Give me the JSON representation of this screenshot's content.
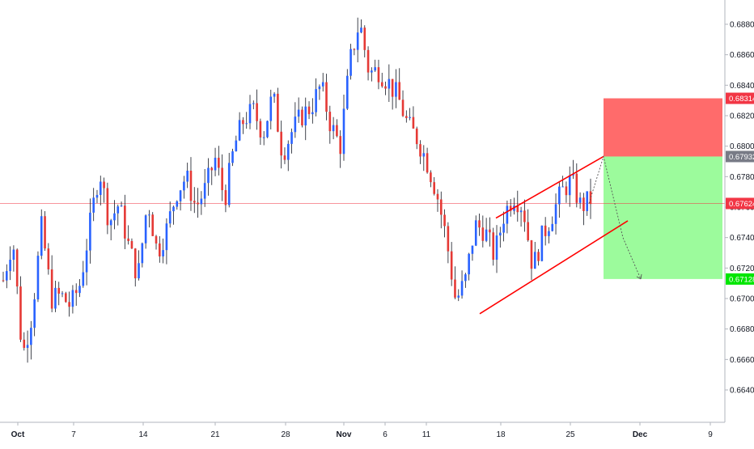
{
  "chart_data": {
    "type": "candlestick",
    "symbol_colors": {
      "up": "#2962ff",
      "down": "#e53935",
      "wick": "#131722"
    },
    "x_axis": {
      "ticks": [
        "Oct",
        "7",
        "14",
        "21",
        "28",
        "Nov",
        "6",
        "11",
        "18",
        "25",
        "Dec",
        "9"
      ],
      "tick_bold": [
        true,
        false,
        false,
        false,
        false,
        true,
        false,
        false,
        false,
        false,
        true,
        false
      ]
    },
    "y_axis": {
      "range": [
        0.6624,
        0.69
      ],
      "ticks": [
        "0.66400",
        "0.66600",
        "0.66800",
        "0.67000",
        "0.67200",
        "0.67400",
        "0.67600",
        "0.67800",
        "0.68000",
        "0.68200",
        "0.68400",
        "0.68600",
        "0.68800"
      ]
    },
    "price_tags": [
      {
        "label": "0.68314",
        "value": 0.68314,
        "color": "#f23645"
      },
      {
        "label": "0.67932",
        "value": 0.67932,
        "color": "#787b86"
      },
      {
        "label": "0.67624",
        "value": 0.67624,
        "color": "#f23645"
      },
      {
        "label": "0.67128",
        "value": 0.67128,
        "color": "#00e600"
      }
    ],
    "horizontal_line": {
      "value": 0.67624,
      "color": "#f23645"
    },
    "position": {
      "type": "short",
      "stop": 0.68314,
      "entry": 0.67932,
      "target": 0.67128,
      "stop_zone_color": "#ff6b6b",
      "target_zone_color": "#9cfb9c"
    },
    "channel_color": "#ff0000",
    "candles_ohlc_summary": [
      0.6712,
      0.674,
      0.6662,
      0.669,
      0.6748,
      0.67,
      0.6702,
      0.6695,
      0.671,
      0.6748,
      0.6785,
      0.675,
      0.6762,
      0.6735,
      0.6714,
      0.6765,
      0.673,
      0.6746,
      0.677,
      0.678,
      0.676,
      0.6772,
      0.6792,
      0.6765,
      0.68,
      0.6818,
      0.6823,
      0.6808,
      0.6834,
      0.6795,
      0.681,
      0.682,
      0.6826,
      0.684,
      0.6814,
      0.68,
      0.6855,
      0.6882,
      0.6848,
      0.685,
      0.6842,
      0.6832,
      0.6814,
      0.6805,
      0.679,
      0.677,
      0.674,
      0.6698,
      0.6712,
      0.6748,
      0.6745,
      0.6728,
      0.6755,
      0.6768,
      0.676,
      0.672,
      0.6741,
      0.6755,
      0.677,
      0.6778,
      0.676,
      0.6765
    ]
  }
}
